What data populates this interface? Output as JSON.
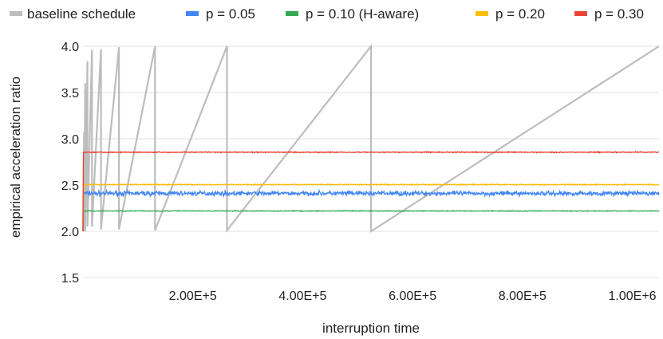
{
  "chart_data": {
    "type": "line",
    "title": "",
    "xlabel": "interruption time",
    "ylabel": "empirical acceleration ratio",
    "xlim": [
      0,
      1048576
    ],
    "ylim": [
      1.5,
      4.0
    ],
    "grid": "horizontal",
    "legend_position": "top",
    "x_ticks": [
      200000,
      400000,
      600000,
      800000,
      1000000
    ],
    "x_tick_labels": [
      "2.00E+5",
      "4.00E+5",
      "6.00E+5",
      "8.00E+5",
      "1.00E+6"
    ],
    "y_ticks": [
      1.5,
      2.0,
      2.5,
      3.0,
      3.5,
      4.0
    ],
    "y_tick_labels": [
      "1.5",
      "2.0",
      "2.5",
      "3.0",
      "3.5",
      "4.0"
    ],
    "series": [
      {
        "name": "baseline schedule",
        "color": "#bdbdbd",
        "style": "sawtooth",
        "x": [
          0,
          2048,
          2048,
          4096,
          4096,
          8192,
          8192,
          16384,
          16384,
          32768,
          32768,
          65536,
          65536,
          131072,
          131072,
          262144,
          262144,
          524288,
          524288,
          1048576
        ],
        "values": [
          2.0,
          3.07,
          2.0,
          3.6,
          2.0,
          3.84,
          2.05,
          3.96,
          2.05,
          3.97,
          2.02,
          3.99,
          2.02,
          4.0,
          2.01,
          4.0,
          2.01,
          4.0,
          2.0,
          4.0
        ]
      },
      {
        "name": "p = 0.05",
        "color": "#4285f4",
        "style": "noisy",
        "start": 2.0,
        "mean": 2.41,
        "noise": 0.035
      },
      {
        "name": "p = 0.10 (H-aware)",
        "color": "#34a853",
        "style": "noisy",
        "start": 2.0,
        "mean": 2.22,
        "noise": 0.006
      },
      {
        "name": "p = 0.20",
        "color": "#fbbc04",
        "style": "noisy",
        "start": 2.0,
        "mean": 2.505,
        "noise": 0.008
      },
      {
        "name": "p = 0.30",
        "color": "#ea4335",
        "style": "noisy",
        "start": 2.0,
        "mean": 2.855,
        "noise": 0.008
      }
    ]
  }
}
